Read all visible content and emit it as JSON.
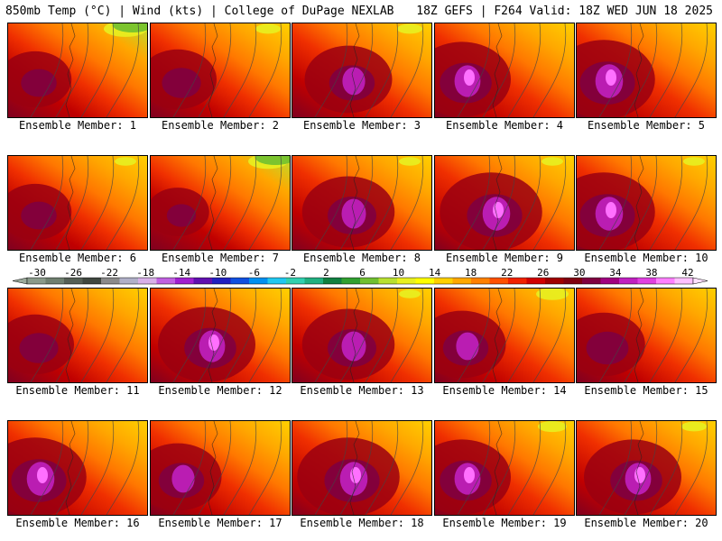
{
  "header": {
    "left": "850mb Temp (°C) | Wind (kts) | College of DuPage NEXLAB",
    "right": "18Z GEFS | F264 Valid: 18Z WED JUN 18 2025"
  },
  "members": [
    {
      "label": "Ensemble Member: 1",
      "hot": 0.55,
      "cool": 0.35,
      "hotspot": "w"
    },
    {
      "label": "Ensemble Member: 2",
      "hot": 0.6,
      "cool": 0.1,
      "hotspot": "w"
    },
    {
      "label": "Ensemble Member: 3",
      "hot": 0.7,
      "cool": 0.1,
      "hotspot": "c"
    },
    {
      "label": "Ensemble Member: 4",
      "hot": 0.8,
      "cool": 0.0,
      "hotspot": "w"
    },
    {
      "label": "Ensemble Member: 5",
      "hot": 0.85,
      "cool": 0.0,
      "hotspot": "w"
    },
    {
      "label": "Ensemble Member: 6",
      "hot": 0.55,
      "cool": 0.05,
      "hotspot": "w"
    },
    {
      "label": "Ensemble Member: 7",
      "hot": 0.45,
      "cool": 0.3,
      "hotspot": "w"
    },
    {
      "label": "Ensemble Member: 8",
      "hot": 0.75,
      "cool": 0.05,
      "hotspot": "c"
    },
    {
      "label": "Ensemble Member: 9",
      "hot": 0.85,
      "cool": 0.05,
      "hotspot": "c"
    },
    {
      "label": "Ensemble Member: 10",
      "hot": 0.85,
      "cool": 0.05,
      "hotspot": "w"
    },
    {
      "label": "Ensemble Member: 11",
      "hot": 0.6,
      "cool": 0.0,
      "hotspot": "w"
    },
    {
      "label": "Ensemble Member: 12",
      "hot": 0.8,
      "cool": 0.0,
      "hotspot": "c"
    },
    {
      "label": "Ensemble Member: 13",
      "hot": 0.75,
      "cool": 0.05,
      "hotspot": "c"
    },
    {
      "label": "Ensemble Member: 14",
      "hot": 0.7,
      "cool": 0.2,
      "hotspot": "w"
    },
    {
      "label": "Ensemble Member: 15",
      "hot": 0.65,
      "cool": 0.0,
      "hotspot": "w"
    },
    {
      "label": "Ensemble Member: 16",
      "hot": 0.85,
      "cool": 0.0,
      "hotspot": "w"
    },
    {
      "label": "Ensemble Member: 17",
      "hot": 0.7,
      "cool": 0.0,
      "hotspot": "w"
    },
    {
      "label": "Ensemble Member: 18",
      "hot": 0.85,
      "cool": 0.0,
      "hotspot": "c"
    },
    {
      "label": "Ensemble Member: 19",
      "hot": 0.8,
      "cool": 0.15,
      "hotspot": "w"
    },
    {
      "label": "Ensemble Member: 20",
      "hot": 0.8,
      "cool": 0.1,
      "hotspot": "c"
    }
  ],
  "colorbar": {
    "labels": [
      "-30",
      "-26",
      "-22",
      "-18",
      "-14",
      "-10",
      "-6",
      "-2",
      "2",
      "6",
      "10",
      "14",
      "18",
      "22",
      "26",
      "30",
      "34",
      "38",
      "42"
    ],
    "colors": [
      "#8a9a8a",
      "#6f7f6f",
      "#555f55",
      "#3f473f",
      "#8a8a8a",
      "#b0b0c8",
      "#d8b0e8",
      "#c060e0",
      "#a020d0",
      "#6010b0",
      "#2020c0",
      "#1050e0",
      "#0090f0",
      "#20c8f0",
      "#30d0b0",
      "#20b080",
      "#108040",
      "#30a030",
      "#70c030",
      "#b8e030",
      "#e8f020",
      "#ffff00",
      "#ffd000",
      "#ffa800",
      "#ff8000",
      "#ff5000",
      "#f02000",
      "#d00000",
      "#a00000",
      "#800010",
      "#800040",
      "#a00080",
      "#c020c0",
      "#e040e0",
      "#ff80ff",
      "#ffc0ff"
    ]
  }
}
